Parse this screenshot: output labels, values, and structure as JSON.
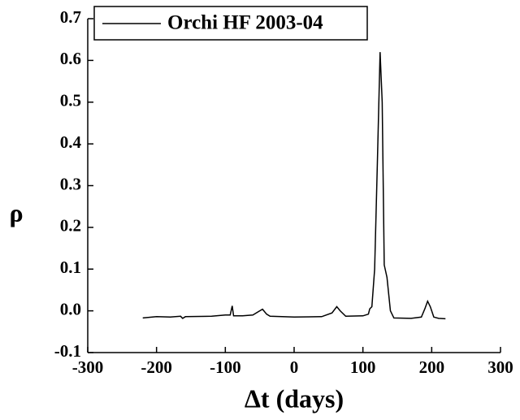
{
  "chart_data": {
    "type": "line",
    "x_label": "Δt (days)",
    "y_label": "ρ",
    "legend": "upper left",
    "xlim": [
      -300,
      300
    ],
    "xticks": [
      -300,
      -200,
      -100,
      0,
      100,
      200,
      300
    ],
    "ylim": [
      -0.1,
      0.7
    ],
    "yticks": [
      -0.1,
      {
        "value": 0,
        "label": "0.0"
      },
      0.1,
      0.2,
      0.3,
      0.4,
      0.5,
      0.6,
      0.7
    ],
    "series": [
      {
        "name": "Orchi HF 2003-04",
        "color": "#000000",
        "x": [
          -220,
          -200,
          -180,
          -165,
          -162,
          -158,
          -120,
          -100,
          -93,
          -90,
          -88,
          -75,
          -60,
          -50,
          -46,
          -40,
          -35,
          0,
          40,
          55,
          62,
          67,
          75,
          100,
          108,
          110,
          113,
          117,
          121,
          125,
          128,
          131,
          135,
          140,
          145,
          170,
          185,
          190,
          194,
          198,
          203,
          210,
          220
        ],
        "values": [
          -0.017,
          -0.014,
          -0.015,
          -0.013,
          -0.018,
          -0.014,
          -0.013,
          -0.01,
          -0.01,
          0.012,
          -0.012,
          -0.012,
          -0.01,
          0.0,
          0.004,
          -0.008,
          -0.013,
          -0.015,
          -0.014,
          -0.005,
          0.01,
          0.0,
          -0.013,
          -0.012,
          -0.008,
          0.005,
          0.01,
          0.1,
          0.35,
          0.62,
          0.5,
          0.11,
          0.08,
          0.0,
          -0.017,
          -0.018,
          -0.015,
          0.005,
          0.023,
          0.01,
          -0.015,
          -0.018,
          -0.019
        ]
      }
    ]
  }
}
